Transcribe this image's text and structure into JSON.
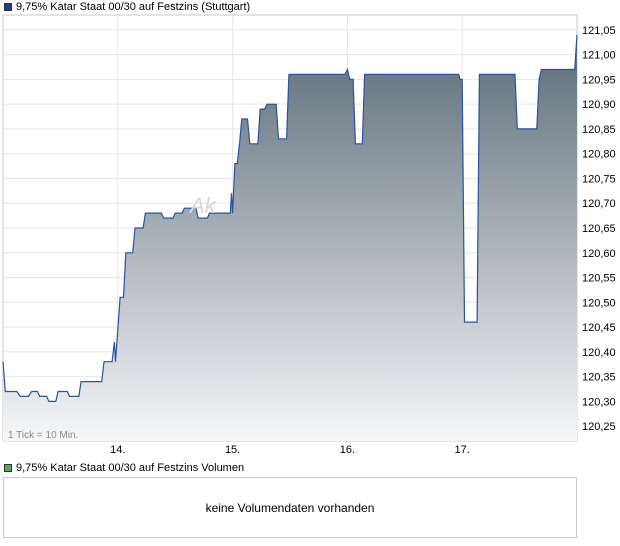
{
  "price_chart": {
    "legend": "9,75% Katar Staat 00/30 auf Festzins (Stuttgart)",
    "legend_color": "#1f3f8f",
    "tick_note": "1 Tick = 10 Min.",
    "watermark": "Ak",
    "line_color": "#2a52a0",
    "fill_top_color": "#5b6c78",
    "fill_bottom_color": "#f6f7f9"
  },
  "volume_chart": {
    "legend": "9,75% Katar Staat 00/30 auf Festzins Volumen",
    "legend_color": "#4caf50",
    "message": "keine Volumendaten vorhanden"
  },
  "chart_data": {
    "type": "area",
    "title": "9,75% Katar Staat 00/30 auf Festzins (Stuttgart)",
    "xlabel": "",
    "ylabel": "",
    "x_tick_labels": [
      "14.",
      "15.",
      "16.",
      "17."
    ],
    "y_tick_labels": [
      "121,05",
      "121,00",
      "120,95",
      "120,90",
      "120,85",
      "120,80",
      "120,75",
      "120,70",
      "120,65",
      "120,60",
      "120,55",
      "120,50",
      "120,45",
      "120,40",
      "120,35",
      "120,30",
      "120,25"
    ],
    "y_ticks": [
      121.05,
      121.0,
      120.95,
      120.9,
      120.85,
      120.8,
      120.75,
      120.7,
      120.65,
      120.6,
      120.55,
      120.5,
      120.45,
      120.4,
      120.35,
      120.3,
      120.25
    ],
    "ylim": [
      120.22,
      121.08
    ],
    "xlim": [
      13.0,
      18.0
    ],
    "x_ticks": [
      14,
      15,
      16,
      17
    ],
    "grid": true,
    "legend_position": "top-left",
    "series": [
      {
        "values": [
          [
            13.0,
            120.38
          ],
          [
            13.02,
            120.32
          ],
          [
            13.08,
            120.32
          ],
          [
            13.12,
            120.32
          ],
          [
            13.15,
            120.31
          ],
          [
            13.22,
            120.31
          ],
          [
            13.25,
            120.32
          ],
          [
            13.3,
            120.32
          ],
          [
            13.32,
            120.31
          ],
          [
            13.38,
            120.31
          ],
          [
            13.4,
            120.3
          ],
          [
            13.46,
            120.3
          ],
          [
            13.48,
            120.32
          ],
          [
            13.56,
            120.32
          ],
          [
            13.58,
            120.31
          ],
          [
            13.66,
            120.31
          ],
          [
            13.68,
            120.34
          ],
          [
            13.86,
            120.34
          ],
          [
            13.88,
            120.38
          ],
          [
            13.95,
            120.38
          ],
          [
            13.97,
            120.42
          ],
          [
            13.98,
            120.38
          ],
          [
            14.02,
            120.51
          ],
          [
            14.05,
            120.51
          ],
          [
            14.07,
            120.6
          ],
          [
            14.13,
            120.6
          ],
          [
            14.15,
            120.65
          ],
          [
            14.22,
            120.65
          ],
          [
            14.24,
            120.68
          ],
          [
            14.38,
            120.68
          ],
          [
            14.4,
            120.67
          ],
          [
            14.48,
            120.67
          ],
          [
            14.5,
            120.68
          ],
          [
            14.56,
            120.68
          ],
          [
            14.58,
            120.69
          ],
          [
            14.68,
            120.69
          ],
          [
            14.7,
            120.67
          ],
          [
            14.78,
            120.67
          ],
          [
            14.8,
            120.68
          ],
          [
            14.98,
            120.68
          ],
          [
            14.99,
            120.72
          ],
          [
            15.0,
            120.68
          ],
          [
            15.02,
            120.78
          ],
          [
            15.04,
            120.78
          ],
          [
            15.06,
            120.82
          ],
          [
            15.08,
            120.87
          ],
          [
            15.13,
            120.87
          ],
          [
            15.15,
            120.82
          ],
          [
            15.22,
            120.82
          ],
          [
            15.24,
            120.89
          ],
          [
            15.28,
            120.89
          ],
          [
            15.3,
            120.9
          ],
          [
            15.38,
            120.9
          ],
          [
            15.4,
            120.83
          ],
          [
            15.47,
            120.83
          ],
          [
            15.49,
            120.96
          ],
          [
            15.98,
            120.96
          ],
          [
            16.0,
            120.97
          ],
          [
            16.02,
            120.95
          ],
          [
            16.05,
            120.95
          ],
          [
            16.07,
            120.82
          ],
          [
            16.13,
            120.82
          ],
          [
            16.15,
            120.96
          ],
          [
            16.97,
            120.96
          ],
          [
            16.98,
            120.95
          ],
          [
            17.0,
            120.95
          ],
          [
            17.02,
            120.46
          ],
          [
            17.13,
            120.46
          ],
          [
            17.15,
            120.96
          ],
          [
            17.46,
            120.96
          ],
          [
            17.48,
            120.85
          ],
          [
            17.65,
            120.85
          ],
          [
            17.67,
            120.95
          ],
          [
            17.69,
            120.97
          ],
          [
            17.98,
            120.97
          ],
          [
            18.0,
            121.04
          ]
        ]
      }
    ]
  },
  "footer": {}
}
